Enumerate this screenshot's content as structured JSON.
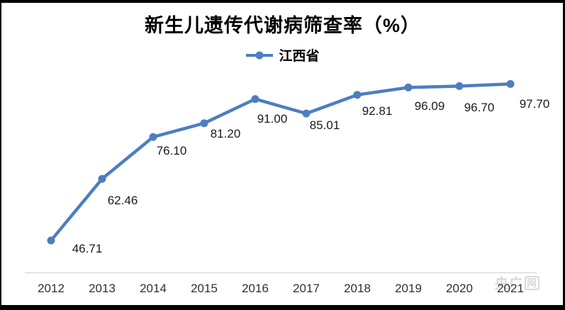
{
  "watermark": {
    "text": "央广",
    "logo": "网"
  },
  "chart_data": {
    "type": "line",
    "title": "新生儿遗传代谢病筛查率（%）",
    "legend_position": "top-center",
    "categories": [
      "2012",
      "2013",
      "2014",
      "2015",
      "2016",
      "2017",
      "2018",
      "2019",
      "2020",
      "2021"
    ],
    "series": [
      {
        "name": "江西省",
        "color": "#4d7ebf",
        "marker": "circle",
        "values": [
          46.71,
          62.46,
          76.1,
          81.2,
          91.0,
          85.01,
          92.81,
          96.09,
          96.7,
          97.7
        ],
        "data_labels": [
          "46.71",
          "62.46",
          "76.10",
          "81.20",
          "91.00",
          "85.01",
          "92.81",
          "96.09",
          "96.70",
          "97.70"
        ]
      }
    ],
    "xlabel": "",
    "ylabel": "",
    "y_axis_visible": false,
    "x_axis_line_visible": true,
    "gridlines": false,
    "data_labels_visible": true,
    "colors": {
      "line": "#4d7ebf",
      "axis_line": "#d9d9d9",
      "value_label_text": "#1a1a1a",
      "tick_text": "#303030",
      "watermark": "#d8d8d8",
      "frame": "#000000",
      "background": "#ffffff"
    }
  }
}
